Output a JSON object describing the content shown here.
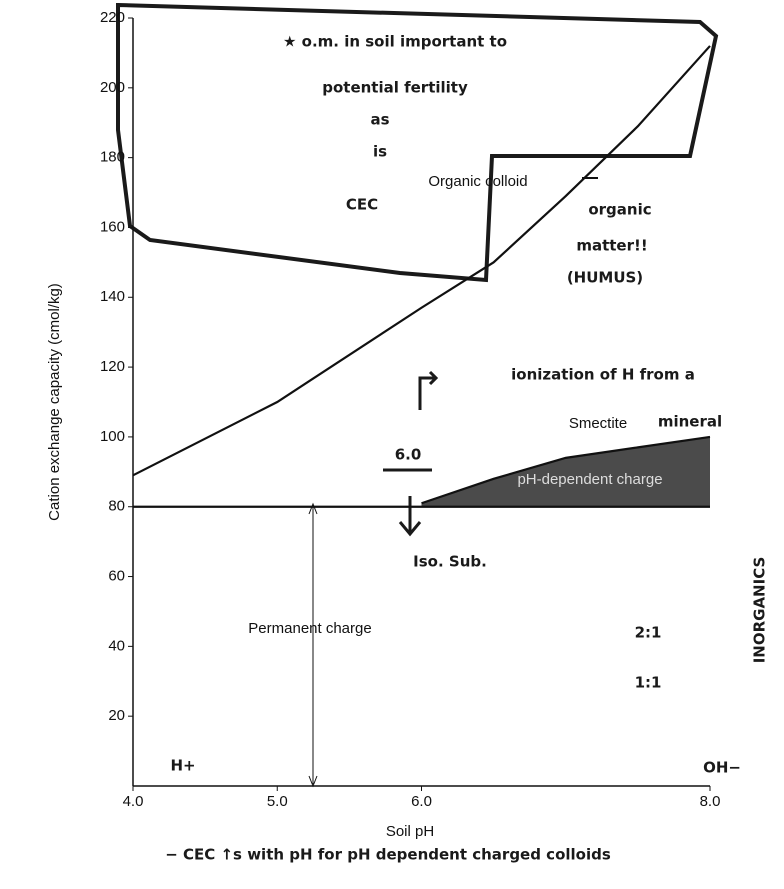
{
  "chart_data": {
    "type": "line",
    "xlabel": "Soil pH",
    "ylabel": "Cation exchange capacity (cmol/kg)",
    "xlim": [
      4,
      8
    ],
    "ylim": [
      0,
      220
    ],
    "xticks": [
      {
        "value": 4,
        "label": "4.0"
      },
      {
        "value": 5,
        "label": "5.0"
      },
      {
        "value": 6,
        "label": "6.0"
      },
      {
        "value": 8,
        "label": "8.0"
      }
    ],
    "yticks": [
      20,
      40,
      60,
      80,
      100,
      120,
      140,
      160,
      180,
      200,
      220
    ],
    "series": [
      {
        "name": "Organic colloid",
        "color": "#111111",
        "x": [
          4,
          5,
          6,
          6.5,
          7,
          7.5,
          8
        ],
        "values": [
          89,
          110,
          137,
          150,
          169,
          189,
          212
        ]
      },
      {
        "name": "Smectite",
        "color": "#111111",
        "x": [
          6,
          6.5,
          7,
          7.5,
          8
        ],
        "values": [
          81,
          88,
          94,
          97,
          100
        ]
      },
      {
        "name": "Permanent charge",
        "color": "#111111",
        "x": [
          4,
          8
        ],
        "values": [
          80,
          80
        ]
      }
    ],
    "annotations": [
      "★ o.m. in soil important to",
      "potential fertility",
      "as",
      "is",
      "CEC",
      "organic",
      "matter!!",
      "(HUMUS)",
      "ionization of H from a",
      "mineral",
      "6.0",
      "Iso. Sub.",
      "INORGANICS",
      "2:1",
      "1:1",
      "H+",
      "OH−",
      "− CEC ↑s with pH for pH dependent charged colloids",
      "pH-dependent charge"
    ]
  }
}
